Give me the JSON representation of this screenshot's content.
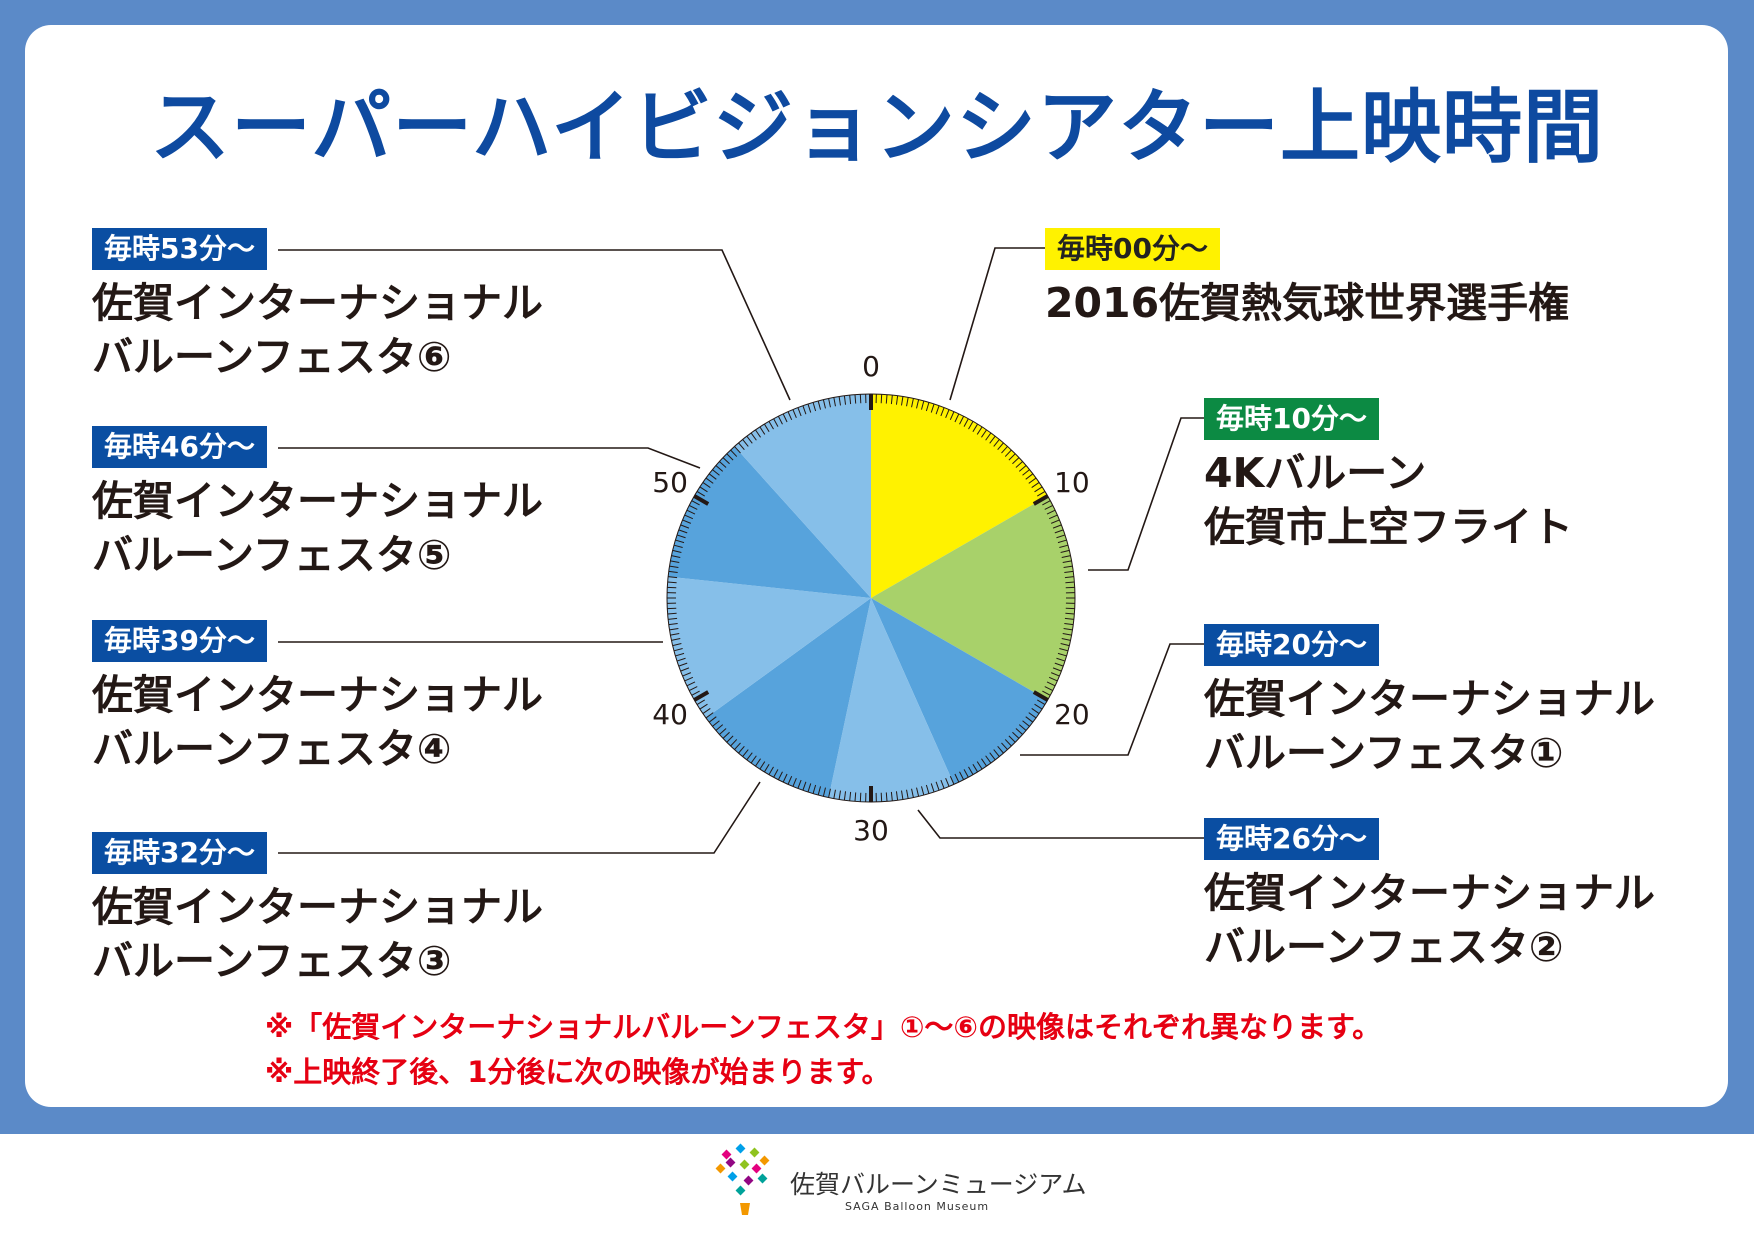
{
  "title": "スーパーハイビジョンシアター上映時間",
  "slots": {
    "s00": {
      "time": "毎時00分〜",
      "lines": [
        "2016佐賀熱気球世界選手権"
      ]
    },
    "s10": {
      "time": "毎時10分〜",
      "lines": [
        "4Kバルーン",
        "佐賀市上空フライト"
      ]
    },
    "s20": {
      "time": "毎時20分〜",
      "lines": [
        "佐賀インターナショナル",
        "バルーンフェスタ①"
      ]
    },
    "s26": {
      "time": "毎時26分〜",
      "lines": [
        "佐賀インターナショナル",
        "バルーンフェスタ②"
      ]
    },
    "s32": {
      "time": "毎時32分〜",
      "lines": [
        "佐賀インターナショナル",
        "バルーンフェスタ③"
      ]
    },
    "s39": {
      "time": "毎時39分〜",
      "lines": [
        "佐賀インターナショナル",
        "バルーンフェスタ④"
      ]
    },
    "s46": {
      "time": "毎時46分〜",
      "lines": [
        "佐賀インターナショナル",
        "バルーンフェスタ⑤"
      ]
    },
    "s53": {
      "time": "毎時53分〜",
      "lines": [
        "佐賀インターナショナル",
        "バルーンフェスタ⑥"
      ]
    }
  },
  "notes": [
    "※「佐賀インターナショナルバルーンフェスタ」①〜⑥の映像はそれぞれ異なります。",
    "※上映終了後、1分後に次の映像が始まります。"
  ],
  "dial_labels": [
    "0",
    "10",
    "20",
    "30",
    "40",
    "50"
  ],
  "segments": [
    {
      "start": 0,
      "end": 10,
      "color": "#fff200"
    },
    {
      "start": 10,
      "end": 20,
      "color": "#a8d16a"
    },
    {
      "start": 20,
      "end": 26,
      "color": "#57a3dc"
    },
    {
      "start": 26,
      "end": 32,
      "color": "#86bfe9"
    },
    {
      "start": 32,
      "end": 39,
      "color": "#57a3dc"
    },
    {
      "start": 39,
      "end": 46,
      "color": "#86bfe9"
    },
    {
      "start": 46,
      "end": 53,
      "color": "#57a3dc"
    },
    {
      "start": 53,
      "end": 60,
      "color": "#86bfe9"
    }
  ],
  "logo": {
    "name_jp": "佐賀バルーンミュージアム",
    "name_en": "SAGA Balloon Museum"
  }
}
